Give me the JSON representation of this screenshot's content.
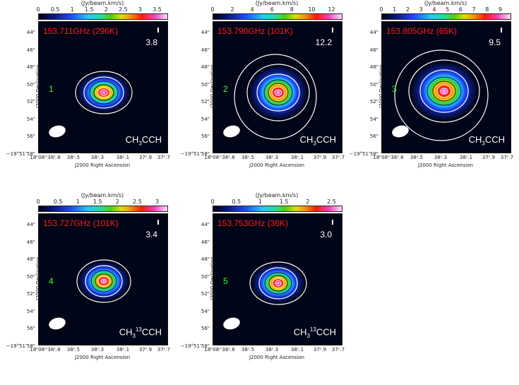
{
  "unit_label": "(Jy/beam.km/s)",
  "y_axis_label": "J2000 Declination",
  "x_axis_label": "J2000 Right Ascension",
  "y_ticks": [
    "44\"",
    "46\"",
    "48\"",
    "50\"",
    "52\"",
    "54\"",
    "56\"",
    "−19°51'58\""
  ],
  "x_ticks": [
    "18ʰ08ᵐ38ˢ.8",
    "38ˢ.5",
    "38ˢ.3",
    "38ˢ.1",
    "37ˢ.9",
    "37ˢ.7"
  ],
  "panels": [
    {
      "id": "1",
      "freq": "153.711GHz (296K)",
      "peak": "3.8",
      "species_main": "CH",
      "species_sub": "3",
      "species_tail": "CCH",
      "species_sup": "",
      "cbar_ticks": [
        "0",
        "0.5",
        "1",
        "1.5",
        "2",
        "2.5",
        "3",
        "3.5"
      ]
    },
    {
      "id": "2",
      "freq": "153.790GHz (101K)",
      "peak": "12.2",
      "species_main": "CH",
      "species_sub": "3",
      "species_tail": "CCH",
      "species_sup": "",
      "cbar_ticks": [
        "0",
        "2",
        "4",
        "6",
        "8",
        "10",
        "12"
      ]
    },
    {
      "id": "3",
      "freq": "153.805GHz (65K)",
      "peak": "9.5",
      "species_main": "CH",
      "species_sub": "3",
      "species_tail": "CCH",
      "species_sup": "",
      "cbar_ticks": [
        "0",
        "1",
        "2",
        "3",
        "4",
        "5",
        "6",
        "7",
        "8",
        "9"
      ]
    },
    {
      "id": "4",
      "freq": "153.727GHz (101K)",
      "peak": "3.4",
      "species_main": "CH",
      "species_sub": "3",
      "species_tail": "CCH",
      "species_sup": "13",
      "cbar_ticks": [
        "0",
        "0.5",
        "1",
        "1.5",
        "2",
        "2.5",
        "3"
      ]
    },
    {
      "id": "5",
      "freq": "153.753GHz (36K)",
      "peak": "3.0",
      "species_main": "CH",
      "species_sub": "3",
      "species_tail": "CCH",
      "species_sup": "13",
      "cbar_ticks": [
        "0",
        "0.5",
        "1",
        "1.5",
        "2",
        "2.5"
      ]
    }
  ]
}
